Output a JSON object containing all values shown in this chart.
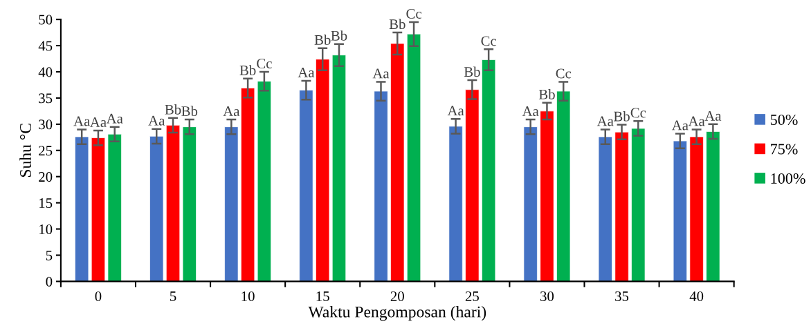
{
  "chart_data": {
    "type": "bar",
    "xlabel": "Waktu Pengomposan (hari)",
    "ylabel": "Suhu °C",
    "categories": [
      "0",
      "5",
      "10",
      "15",
      "20",
      "25",
      "30",
      "35",
      "40"
    ],
    "ylim": [
      0,
      50
    ],
    "yticks": [
      0,
      5,
      10,
      15,
      20,
      25,
      30,
      35,
      40,
      45,
      50
    ],
    "grid": false,
    "legend": "right",
    "series": [
      {
        "name": "50%",
        "color": "#4472c4",
        "values": [
          27.6,
          27.7,
          29.5,
          36.5,
          36.3,
          29.6,
          29.5,
          27.6,
          26.8
        ],
        "errors": [
          1.4,
          1.4,
          1.4,
          1.8,
          1.8,
          1.4,
          1.4,
          1.4,
          1.4
        ],
        "value_labels": [
          "Aa",
          "Aa",
          "Aa",
          "Aa",
          "Aa",
          "Aa",
          "Aa",
          "Aa",
          "Aa"
        ]
      },
      {
        "name": "75%",
        "color": "#ff0000",
        "values": [
          27.4,
          29.8,
          36.9,
          42.4,
          45.4,
          36.6,
          32.5,
          28.5,
          27.6
        ],
        "errors": [
          1.4,
          1.4,
          1.8,
          2.1,
          2.1,
          1.8,
          1.6,
          1.4,
          1.4
        ],
        "value_labels": [
          "Aa",
          "Bb",
          "Bb",
          "Bb",
          "Bb",
          "Bb",
          "Bb",
          "Bb",
          "Aa"
        ]
      },
      {
        "name": "100%",
        "color": "#00b050",
        "values": [
          28.1,
          29.5,
          38.2,
          43.2,
          47.2,
          42.3,
          36.3,
          29.2,
          28.6
        ],
        "errors": [
          1.4,
          1.4,
          1.8,
          2.1,
          2.3,
          2.0,
          1.8,
          1.4,
          1.4
        ],
        "value_labels": [
          "Aa",
          "Bb",
          "Cc",
          "Bb",
          "Cc",
          "Cc",
          "Cc",
          "Cc",
          "Aa"
        ]
      }
    ]
  }
}
